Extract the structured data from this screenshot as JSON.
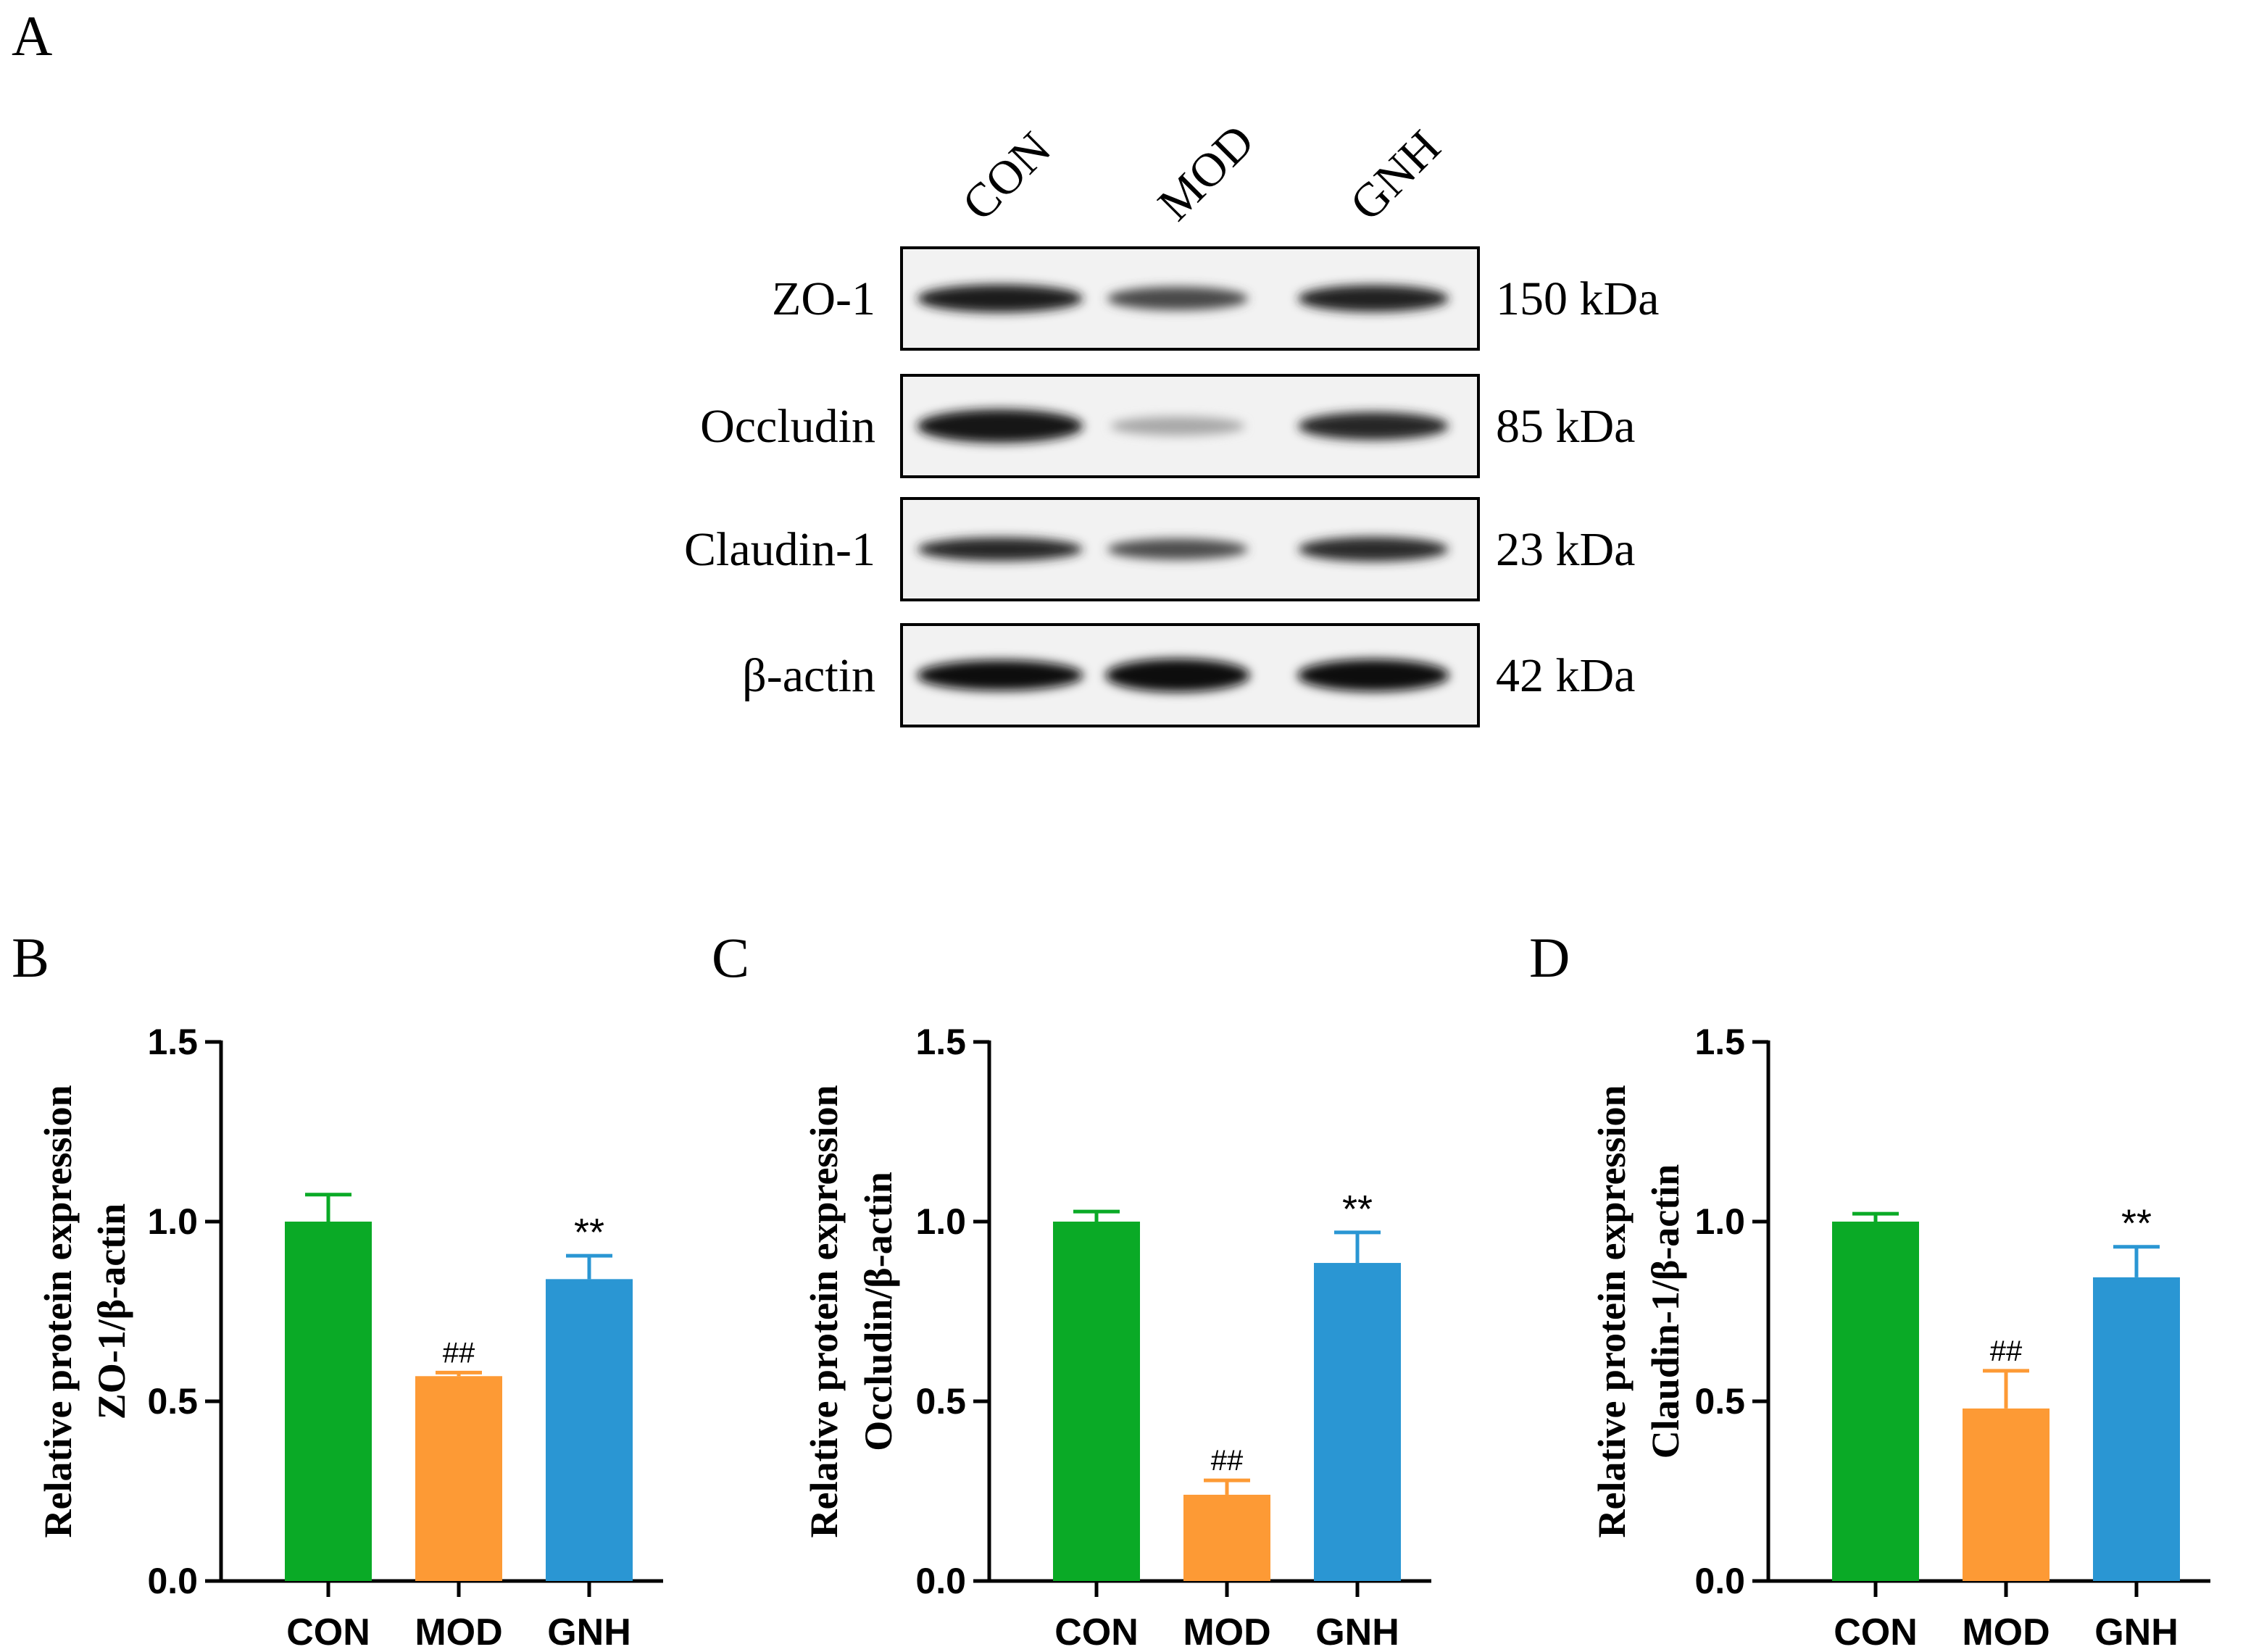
{
  "panel_labels": [
    "A",
    "B",
    "C",
    "D"
  ],
  "blot": {
    "lanes": [
      "CON",
      "MOD",
      "GNH"
    ],
    "rows": [
      {
        "protein": "ZO-1",
        "size": "150 kDa",
        "intensity": [
          0.92,
          0.72,
          0.9
        ],
        "thickness": [
          0.5,
          0.42,
          0.48
        ]
      },
      {
        "protein": "Occludin",
        "size": "85 kDa",
        "intensity": [
          0.95,
          0.3,
          0.88
        ],
        "thickness": [
          0.6,
          0.34,
          0.5
        ]
      },
      {
        "protein": "Claudin-1",
        "size": "23 kDa",
        "intensity": [
          0.88,
          0.7,
          0.85
        ],
        "thickness": [
          0.42,
          0.38,
          0.44
        ]
      },
      {
        "protein": "β-actin",
        "size": "42 kDa",
        "intensity": [
          0.98,
          0.98,
          0.98
        ],
        "thickness": [
          0.55,
          0.6,
          0.58
        ]
      }
    ]
  },
  "colors": {
    "CON": "#0aaa26",
    "MOD": "#fd9a35",
    "GNH": "#2a96d3"
  },
  "chart_data": [
    {
      "type": "bar",
      "panel": "B",
      "categories": [
        "CON",
        "MOD",
        "GNH"
      ],
      "values": [
        1.0,
        0.57,
        0.84
      ],
      "error": [
        0.075,
        0.01,
        0.065
      ],
      "annotations": [
        "",
        "##",
        "**"
      ],
      "ylabel_line1": "Relative protein expression",
      "ylabel_line2": "ZO-1/β-actin",
      "ylim": [
        0,
        1.5
      ],
      "yticks": [
        "0.0",
        "0.5",
        "1.0",
        "1.5"
      ]
    },
    {
      "type": "bar",
      "panel": "C",
      "categories": [
        "CON",
        "MOD",
        "GNH"
      ],
      "values": [
        1.0,
        0.24,
        0.885
      ],
      "error": [
        0.028,
        0.04,
        0.085
      ],
      "annotations": [
        "",
        "##",
        "**"
      ],
      "ylabel_line1": "Relative protein expression",
      "ylabel_line2": "Occludin/β-actin",
      "ylim": [
        0,
        1.5
      ],
      "yticks": [
        "0.0",
        "0.5",
        "1.0",
        "1.5"
      ]
    },
    {
      "type": "bar",
      "panel": "D",
      "categories": [
        "CON",
        "MOD",
        "GNH"
      ],
      "values": [
        1.0,
        0.48,
        0.845
      ],
      "error": [
        0.022,
        0.105,
        0.085
      ],
      "annotations": [
        "",
        "##",
        "**"
      ],
      "ylabel_line1": "Relative protein expression",
      "ylabel_line2": "Claudin-1/β-actin",
      "ylim": [
        0,
        1.5
      ],
      "yticks": [
        "0.0",
        "0.5",
        "1.0",
        "1.5"
      ]
    }
  ]
}
